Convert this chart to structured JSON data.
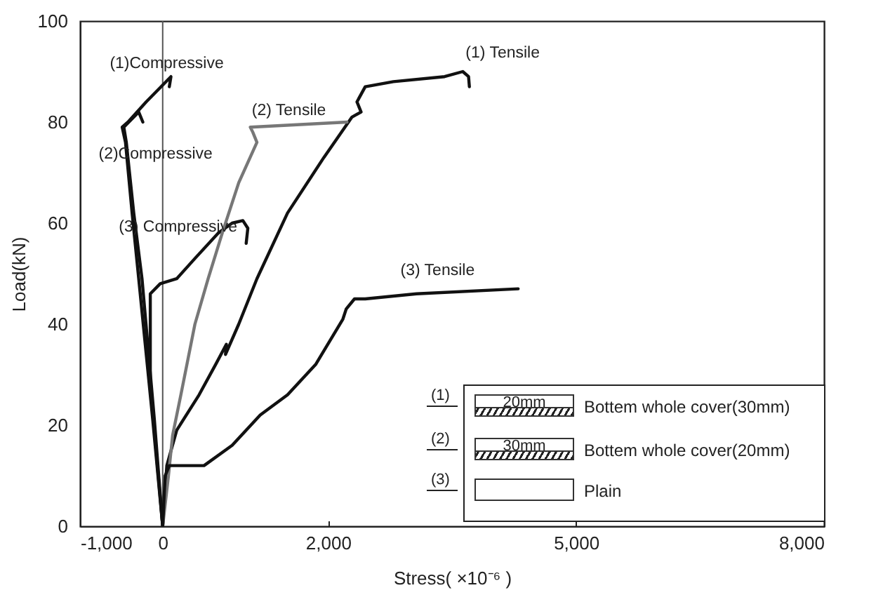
{
  "chart_data": {
    "type": "line",
    "xlabel": "Stress( ×10⁻⁶ )",
    "ylabel": "Load(kN)",
    "xlim": [
      -1000,
      8000
    ],
    "xticks": [
      {
        "value": -1000,
        "label": "-1,000"
      },
      0,
      {
        "value": 2000,
        "label": "2,000"
      },
      {
        "value": 5000,
        "label": "5,000"
      },
      {
        "value": 8000,
        "label": "8,000"
      }
    ],
    "ylim": [
      0,
      100
    ],
    "yticks": [
      0,
      20,
      40,
      60,
      80,
      100
    ],
    "series": [
      {
        "name": "(1)Compressive",
        "color": "#111111",
        "x": [
          0,
          -120,
          -290,
          -370,
          -450,
          -490,
          -420,
          -200,
          100,
          80
        ],
        "values": [
          0,
          21,
          49,
          62,
          76,
          79,
          80,
          84,
          89,
          87
        ]
      },
      {
        "name": "(2)Compressive",
        "color": "#111111",
        "x": [
          0,
          -100,
          -250,
          -350,
          -440,
          -470,
          -290,
          -240
        ],
        "values": [
          0,
          21,
          49,
          62,
          76,
          79,
          82,
          80
        ]
      },
      {
        "name": "(3) Compressive",
        "color": "#111111",
        "x": [
          0,
          -80,
          -150,
          -150,
          -30,
          170,
          390,
          670,
          840,
          970,
          1030,
          1010
        ],
        "values": [
          0,
          15,
          29,
          46,
          48,
          49,
          53,
          58,
          60,
          60.5,
          59,
          56
        ]
      },
      {
        "name": "(1) Tensile",
        "color": "#111111",
        "x": [
          0,
          50,
          170,
          440,
          640,
          770,
          760,
          920,
          1140,
          1510,
          1950,
          2290,
          2400,
          2350,
          2450,
          2790,
          3410,
          3630,
          3700,
          3710
        ],
        "values": [
          0,
          12,
          19,
          26,
          32,
          36,
          34,
          40,
          49,
          62,
          73,
          81,
          82,
          84,
          87,
          88,
          89,
          90,
          89,
          87
        ]
      },
      {
        "name": "(2) Tensile",
        "color": "#777777",
        "x": [
          0,
          70,
          120,
          220,
          390,
          550,
          720,
          920,
          1140,
          1090,
          1060,
          2230
        ],
        "values": [
          0,
          10,
          18,
          26,
          40,
          49,
          58,
          68,
          76,
          78,
          79,
          80
        ]
      },
      {
        "name": "(3) Tensile",
        "color": "#111111",
        "x": [
          0,
          30,
          80,
          500,
          840,
          1180,
          1510,
          1850,
          2180,
          2220,
          2320,
          2450,
          3070,
          4300
        ],
        "values": [
          0,
          10,
          12,
          12,
          16,
          22,
          26,
          32,
          41,
          43,
          45,
          45,
          46,
          47
        ]
      }
    ],
    "ref_lines": [
      {
        "axis": "x",
        "value": 0,
        "color": "#555555"
      }
    ],
    "annotations": [
      "(1)",
      "20mm",
      "Bottem whole cover(30mm)",
      "(2)",
      "30mm",
      "Bottem whole cover(20mm)",
      "(3)",
      "Plain"
    ]
  }
}
